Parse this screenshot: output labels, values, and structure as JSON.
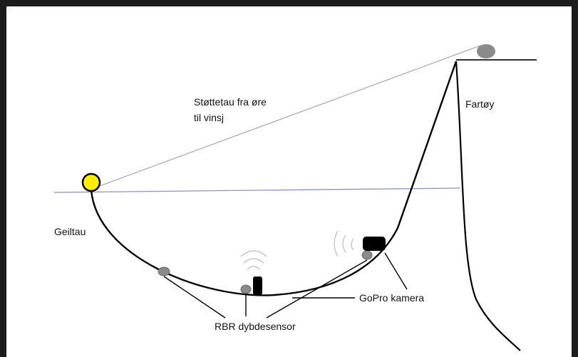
{
  "labels": {
    "support_rope_line1": "Støttetau fra øre",
    "support_rope_line2": "til vinsj",
    "vessel": "Fartøy",
    "seine_rope": "Geiltau",
    "gopro": "GoPro kamera",
    "rbr": "RBR dybdesensor"
  },
  "colors": {
    "frame": "#1c1c1c",
    "water_line": "#8c93c4",
    "support_rope": "#a8a8a8",
    "rope": "#000000",
    "float": "#ffee00",
    "sensor": "#8a8a8a",
    "camera": "#000000"
  }
}
